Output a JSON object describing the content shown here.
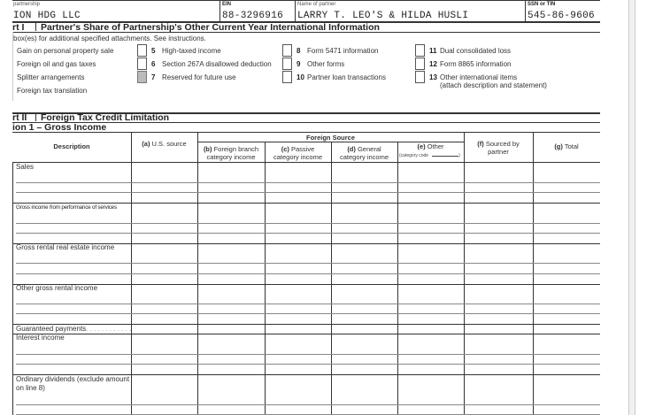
{
  "header": {
    "partnership_label": "partnership",
    "partnership_value": "ION HDG LLC",
    "ein_label": "EIN",
    "ein_value": "88-3296916",
    "partner_label": "Name of partner",
    "partner_value": "LARRY T. LEO'S & HILDA HUSLI",
    "ssn_label": "SSN or TIN",
    "ssn_value": "545-86-9606"
  },
  "part1": {
    "tag": "rt I",
    "title": "Partner's Share of Partnership's Other Current Year International Information",
    "instructions": "box(es) for additional specified attachments. See instructions.",
    "col1": [
      "Gain on personal property sale",
      "Foreign oil and gas taxes",
      "Splitter arrangements",
      "Foreign tax translation"
    ],
    "items": [
      {
        "num": "5",
        "label": "High-taxed income",
        "checked": false,
        "disabled": false
      },
      {
        "num": "6",
        "label": "Section 267A disallowed deduction",
        "checked": false,
        "disabled": false
      },
      {
        "num": "7",
        "label": "Reserved for future use",
        "checked": false,
        "disabled": true
      },
      {
        "num": "8",
        "label": "Form 5471 information",
        "checked": false,
        "disabled": false
      },
      {
        "num": "9",
        "label": "Other forms",
        "checked": false,
        "disabled": false
      },
      {
        "num": "10",
        "label": "Partner loan transactions",
        "checked": false,
        "disabled": false
      },
      {
        "num": "11",
        "label": "Dual consolidated loss",
        "checked": false,
        "disabled": false
      },
      {
        "num": "12",
        "label": "Form 8865 information",
        "checked": false,
        "disabled": false
      },
      {
        "num": "13",
        "label": "Other international items",
        "label2": "(attach description and statement)",
        "checked": false,
        "disabled": false
      }
    ]
  },
  "part2": {
    "tag": "rt II",
    "title": "Foreign Tax Credit Limitation",
    "section": "ion 1 – Gross Income",
    "columns": {
      "description": "Description",
      "a_key": "(a)",
      "a": " U.S. source",
      "foreign_source": "Foreign Source",
      "b_key": "(b)",
      "b": " Foreign branch",
      "b2": "category income",
      "c_key": "(c)",
      "c": " Passive",
      "c2": "category income",
      "d_key": "(d)",
      "d": " General",
      "d2": "category income",
      "e_key": "(e)",
      "e": " Other",
      "e2": "(category code",
      "f_key": "(f)",
      "f": " Sourced by",
      "f2": "partner",
      "g_key": "(g)",
      "g": " Total"
    },
    "rows": [
      "Sales",
      "Gross income from performance of services",
      "Gross rental real estate income",
      "Other gross rental income",
      "Guaranteed payments",
      "Interest income",
      "Ordinary dividends (exclude amount",
      "on line 8)"
    ],
    "leader": ". . . . . . . . . . . ."
  }
}
